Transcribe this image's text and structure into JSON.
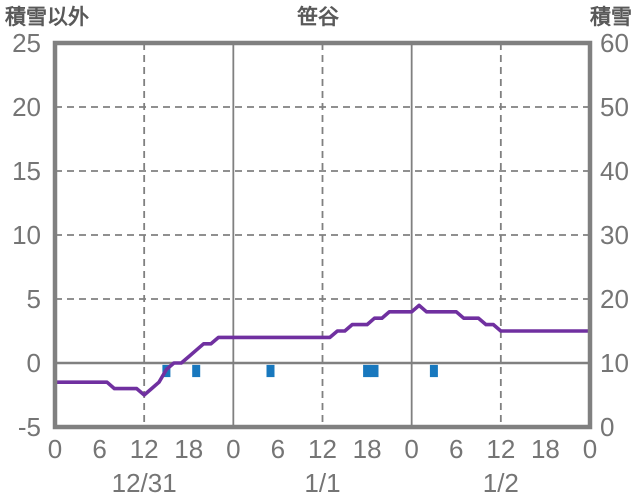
{
  "header": {
    "left_axis_title": "積雪以外",
    "chart_title": "笹谷",
    "right_axis_title": "積雪"
  },
  "colors": {
    "line": "#7030A0",
    "bars": "#1878BE",
    "grid": "#808080",
    "tick_text": "#757575",
    "title_text": "#595959",
    "background": "#FFFFFF"
  },
  "chart_data": {
    "type": "line",
    "title": "笹谷",
    "x_axis": {
      "unit": "hour",
      "range_hours": [
        0,
        72
      ],
      "tick_interval_hours": 6,
      "tick_labels": [
        "0",
        "6",
        "12",
        "18",
        "0",
        "6",
        "12",
        "18",
        "0",
        "6",
        "12",
        "18",
        "0"
      ],
      "date_labels": [
        {
          "label": "12/31",
          "hour": 12
        },
        {
          "label": "1/1",
          "hour": 36
        },
        {
          "label": "1/2",
          "hour": 60
        }
      ]
    },
    "y_axis_left": {
      "title": "積雪以外",
      "min": -5,
      "max": 25,
      "step": 5,
      "ticks": [
        "25",
        "20",
        "15",
        "10",
        "5",
        "0",
        "-5"
      ]
    },
    "y_axis_right": {
      "title": "積雪",
      "min": 0,
      "max": 60,
      "step": 10,
      "ticks": [
        "60",
        "50",
        "40",
        "30",
        "20",
        "10",
        "0"
      ]
    },
    "gridlines": {
      "horizontal_dashed_left_values": [
        20,
        15,
        10,
        5
      ],
      "zero_line_left_value": 0,
      "vertical_solid_hours": [
        24,
        48
      ],
      "vertical_dashed_hours": [
        12,
        36,
        60
      ]
    },
    "series": [
      {
        "id": "snow-depth-line",
        "type": "line",
        "axis": "right",
        "color": "#7030A0",
        "hour_start": 0,
        "hour_step": 1,
        "values_left_axis": [
          -1.5,
          -1.5,
          -1.5,
          -1.5,
          -1.5,
          -1.5,
          -1.5,
          -1.5,
          -2,
          -2,
          -2,
          -2,
          -2.5,
          -2,
          -1.5,
          -0.5,
          0,
          0,
          0.5,
          1,
          1.5,
          1.5,
          2,
          2,
          2,
          2,
          2,
          2,
          2,
          2,
          2,
          2,
          2,
          2,
          2,
          2,
          2,
          2,
          2.5,
          2.5,
          3,
          3,
          3,
          3.5,
          3.5,
          4,
          4,
          4,
          4,
          4.5,
          4,
          4,
          4,
          4,
          4,
          3.5,
          3.5,
          3.5,
          3,
          3,
          2.5,
          2.5,
          2.5,
          2.5,
          2.5,
          2.5,
          2.5,
          2.5,
          2.5,
          2.5,
          2.5,
          2.5,
          2.5
        ],
        "values_right_axis_cm": [
          7,
          7,
          7,
          7,
          7,
          7,
          7,
          7,
          6,
          6,
          6,
          6,
          5,
          6,
          7,
          9,
          10,
          10,
          11,
          12,
          13,
          13,
          14,
          14,
          14,
          14,
          14,
          14,
          14,
          14,
          14,
          14,
          14,
          14,
          14,
          14,
          14,
          14,
          15,
          15,
          16,
          16,
          16,
          17,
          17,
          18,
          18,
          18,
          18,
          19,
          18,
          18,
          18,
          18,
          18,
          17,
          17,
          17,
          16,
          16,
          15,
          15,
          15,
          15,
          15,
          15,
          15,
          15,
          15,
          15,
          15,
          15,
          15
        ]
      },
      {
        "id": "blue-event-bars",
        "type": "bar",
        "axis": "left",
        "color": "#1878BE",
        "bar_hours": [
          15,
          19,
          29,
          42,
          43,
          51
        ],
        "bar_width_hours": 1,
        "bar_top_left_value": -0.15,
        "bar_bottom_left_value": -1.1
      }
    ]
  }
}
